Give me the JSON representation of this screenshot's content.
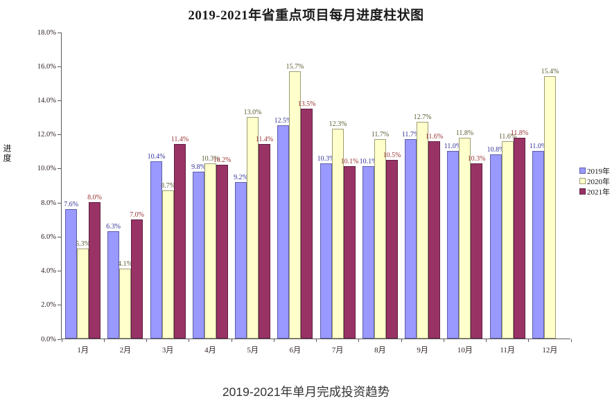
{
  "page": {
    "title": "2019-2021年省重点项目每月进度柱状图",
    "subtitle": "2019-2021年单月完成投资趋势"
  },
  "chart_data": {
    "type": "bar",
    "title": "2019-2021年省重点项目每月进度柱状图",
    "subtitle": "2019-2021年单月完成投资趋势",
    "xlabel": "",
    "ylabel": "进度",
    "ylim": [
      0,
      18
    ],
    "grid": false,
    "legend_position": "right",
    "value_label_suffix": "%",
    "y_ticks": [
      "0.0%",
      "2.0%",
      "4.0%",
      "6.0%",
      "8.0%",
      "10.0%",
      "12.0%",
      "14.0%",
      "16.0%",
      "18.0%"
    ],
    "categories": [
      "1月",
      "2月",
      "3月",
      "4月",
      "5月",
      "6月",
      "7月",
      "8月",
      "9月",
      "10月",
      "11月",
      "12月"
    ],
    "series": [
      {
        "name": "2019年",
        "color": "#9999FF",
        "border_color": "#5e5ea8",
        "label_color": "#333399",
        "values": [
          7.6,
          6.3,
          10.4,
          9.8,
          9.2,
          12.5,
          10.3,
          10.1,
          11.7,
          11.0,
          10.8,
          11.0
        ]
      },
      {
        "name": "2020年",
        "color": "#FFFFCC",
        "border_color": "#9c9c72",
        "label_color": "#5c5c33",
        "values": [
          5.3,
          4.1,
          8.7,
          10.3,
          13.0,
          15.7,
          12.3,
          11.7,
          12.7,
          11.8,
          11.6,
          15.4
        ]
      },
      {
        "name": "2021年",
        "color": "#993366",
        "border_color": "#5e1f40",
        "label_color": "#993333",
        "values": [
          8.0,
          7.0,
          11.4,
          10.2,
          11.4,
          13.5,
          10.1,
          10.5,
          11.6,
          10.3,
          11.8,
          null
        ]
      }
    ]
  }
}
